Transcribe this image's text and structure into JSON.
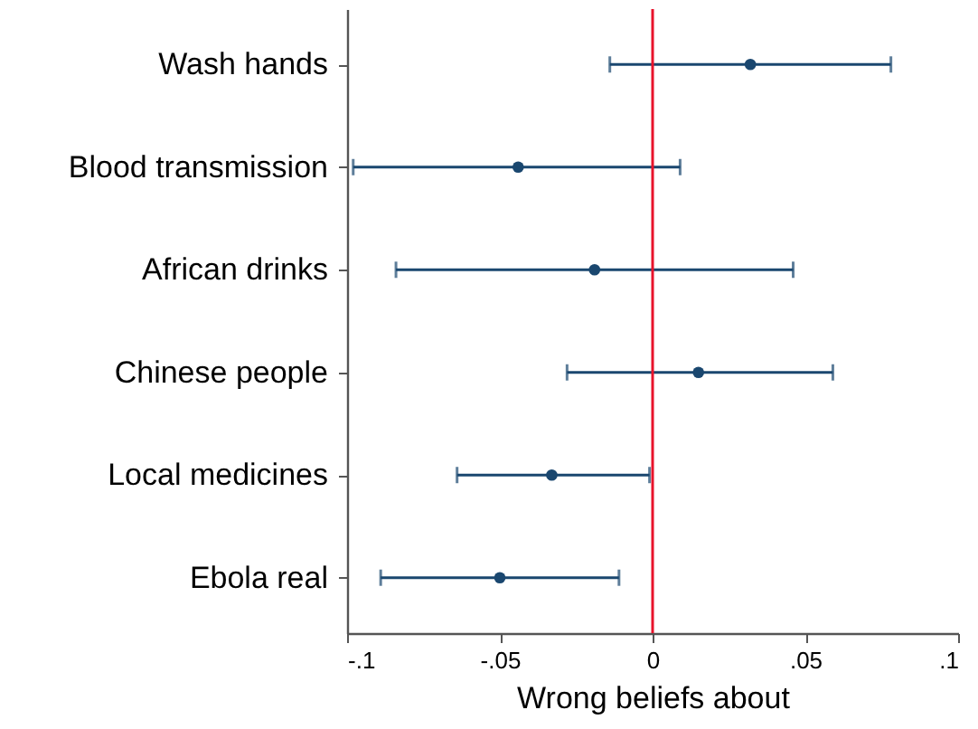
{
  "chart_data": {
    "type": "scatter",
    "orientation": "horizontal",
    "xlabel": "Wrong beliefs about",
    "categories": [
      "Wash hands",
      "Blood transmission",
      "African drinks",
      "Chinese people",
      "Local medicines",
      "Ebola real"
    ],
    "values": [
      0.032,
      -0.044,
      -0.019,
      0.015,
      -0.033,
      -0.05
    ],
    "errors": [
      [
        -0.014,
        0.078
      ],
      [
        -0.098,
        0.009
      ],
      [
        -0.084,
        0.046
      ],
      [
        -0.028,
        0.059
      ],
      [
        -0.064,
        -0.001
      ],
      [
        -0.089,
        -0.011
      ]
    ],
    "color": "#1a476f",
    "marker": "circle",
    "grid": false,
    "xlim": [
      -0.1,
      0.1
    ],
    "xticks": [
      {
        "value": -0.1,
        "label": "-.1"
      },
      {
        "value": -0.05,
        "label": "-.05"
      },
      0,
      {
        "value": 0.05,
        "label": ".05"
      },
      {
        "value": 0.1,
        "label": ".1"
      }
    ],
    "ref_lines": [
      {
        "axis": "x",
        "value": 0,
        "color": "#e8132b"
      }
    ]
  }
}
